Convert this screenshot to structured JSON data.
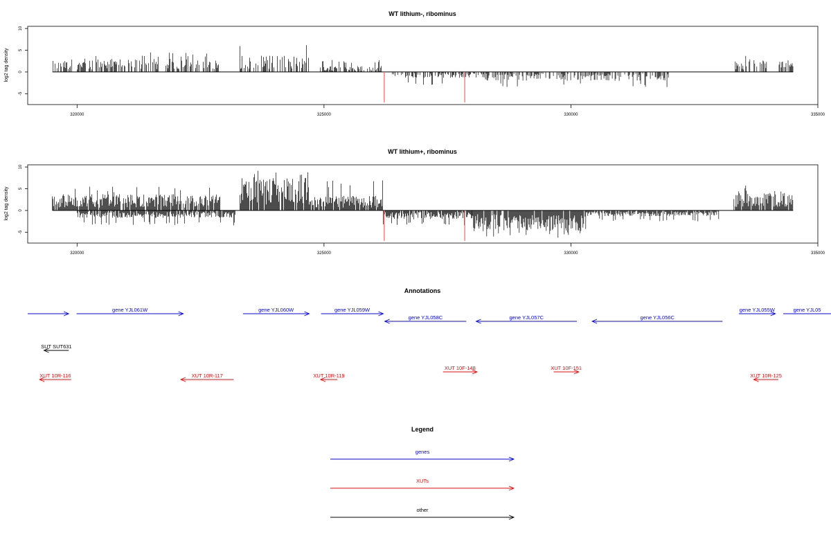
{
  "chart_data": [
    {
      "type": "bar",
      "title": "WT lithium-, ribominus",
      "ylabel": "log2 tag density",
      "xlim": [
        319000,
        335000
      ],
      "ylim": [
        -7.5,
        10.5
      ],
      "yticks": [
        -5,
        0,
        5,
        10
      ],
      "xticks": [
        320000,
        325000,
        330000,
        335000
      ],
      "data_range": [
        319500,
        334500
      ],
      "segments": [
        {
          "start": 319500,
          "end": 319900,
          "strand": "+",
          "avg": 1.5,
          "max": 3.5
        },
        {
          "start": 320000,
          "end": 322900,
          "strand": "+",
          "avg": 1.8,
          "max": 4.5
        },
        {
          "start": 323300,
          "end": 324700,
          "strand": "+",
          "avg": 2.2,
          "max": 6.2
        },
        {
          "start": 324900,
          "end": 326200,
          "strand": "+",
          "avg": 0.8,
          "max": 2.8
        },
        {
          "start": 326300,
          "end": 328200,
          "strand": "-",
          "avg": -0.8,
          "max": -3.0
        },
        {
          "start": 328200,
          "end": 332000,
          "strand": "-",
          "avg": -1.2,
          "max": -3.5
        },
        {
          "start": 333300,
          "end": 334000,
          "strand": "+",
          "avg": 1.8,
          "max": 4.5
        },
        {
          "start": 334200,
          "end": 334500,
          "strand": "+",
          "avg": 1.5,
          "max": 3.5
        }
      ],
      "red_marks": [
        {
          "x": 326220,
          "y": -7
        },
        {
          "x": 327850,
          "y": -7
        }
      ]
    },
    {
      "type": "bar",
      "title": "WT lithium+, ribominus",
      "ylabel": "log2 tag density",
      "xlim": [
        319000,
        335000
      ],
      "ylim": [
        -7.5,
        10.5
      ],
      "yticks": [
        -5,
        0,
        5,
        10
      ],
      "xticks": [
        320000,
        325000,
        330000,
        335000
      ],
      "data_range": [
        319500,
        334500
      ],
      "segments": [
        {
          "start": 319500,
          "end": 322900,
          "strand": "+",
          "avg": 2.2,
          "max": 5.5
        },
        {
          "start": 320000,
          "end": 323200,
          "strand": "-",
          "avg": -1.0,
          "max": -3.5
        },
        {
          "start": 323300,
          "end": 324700,
          "strand": "+",
          "avg": 4.5,
          "max": 10.0
        },
        {
          "start": 324700,
          "end": 326200,
          "strand": "+",
          "avg": 2.0,
          "max": 7.0
        },
        {
          "start": 326200,
          "end": 328000,
          "strand": "-",
          "avg": -1.2,
          "max": -3.5
        },
        {
          "start": 328000,
          "end": 330300,
          "strand": "-",
          "avg": -2.8,
          "max": -6.5
        },
        {
          "start": 330300,
          "end": 333000,
          "strand": "-",
          "avg": -0.8,
          "max": -2.5
        },
        {
          "start": 333300,
          "end": 334500,
          "strand": "+",
          "avg": 2.6,
          "max": 5.8
        }
      ],
      "red_marks": [
        {
          "x": 326220,
          "y": -7
        },
        {
          "x": 327850,
          "y": -7
        }
      ]
    }
  ],
  "annotations": {
    "title": "Annotations",
    "features": [
      {
        "type": "gene",
        "label": "",
        "start": 319000,
        "end": 319830,
        "strand": "+",
        "row": 1
      },
      {
        "type": "gene",
        "label": "gene YJL061W",
        "start": 319990,
        "end": 322150,
        "strand": "+",
        "row": 1
      },
      {
        "type": "gene",
        "label": "gene YJL060W",
        "start": 323360,
        "end": 324700,
        "strand": "+",
        "row": 1
      },
      {
        "type": "gene",
        "label": "gene YJL059W",
        "start": 324940,
        "end": 326200,
        "strand": "+",
        "row": 1
      },
      {
        "type": "gene",
        "label": "gene YJL058C",
        "start": 326230,
        "end": 327880,
        "strand": "-",
        "row": 2
      },
      {
        "type": "gene",
        "label": "gene YJL057C",
        "start": 328080,
        "end": 330120,
        "strand": "-",
        "row": 2
      },
      {
        "type": "gene",
        "label": "gene YJL056C",
        "start": 330430,
        "end": 333070,
        "strand": "-",
        "row": 2
      },
      {
        "type": "gene",
        "label": "gene YJL055W",
        "start": 333400,
        "end": 334140,
        "strand": "+",
        "row": 1
      },
      {
        "type": "gene",
        "label": "gene YJL05",
        "start": 334300,
        "end": 335300,
        "strand": "+",
        "row": 1
      },
      {
        "type": "other",
        "label": "SUT SUT631",
        "start": 319330,
        "end": 319830,
        "strand": "-",
        "row": 3
      },
      {
        "type": "xut",
        "label": "XUT 10R-116",
        "start": 319240,
        "end": 319880,
        "strand": "-",
        "row": 4
      },
      {
        "type": "xut",
        "label": "XUT 10R-117",
        "start": 322100,
        "end": 323170,
        "strand": "-",
        "row": 4
      },
      {
        "type": "xut",
        "label": "XUT 10R-119",
        "start": 324930,
        "end": 325270,
        "strand": "-",
        "row": 4
      },
      {
        "type": "xut",
        "label": "XUT 10F-148",
        "start": 327410,
        "end": 328100,
        "strand": "+",
        "row": 5
      },
      {
        "type": "xut",
        "label": "XUT 10F-151",
        "start": 329650,
        "end": 330160,
        "strand": "+",
        "row": 5
      },
      {
        "type": "xut",
        "label": "XUT 10R-125",
        "start": 333700,
        "end": 334200,
        "strand": "-",
        "row": 4
      }
    ]
  },
  "legend": {
    "title": "Legend",
    "items": [
      {
        "label": "genes",
        "color": "#0000ff"
      },
      {
        "label": "XUTs",
        "color": "#ff0000"
      },
      {
        "label": "other",
        "color": "#000000"
      }
    ]
  },
  "colors": {
    "gene": "#0000ff",
    "xut": "#ff0000",
    "other": "#000000",
    "mark": "#ff6b6b"
  }
}
